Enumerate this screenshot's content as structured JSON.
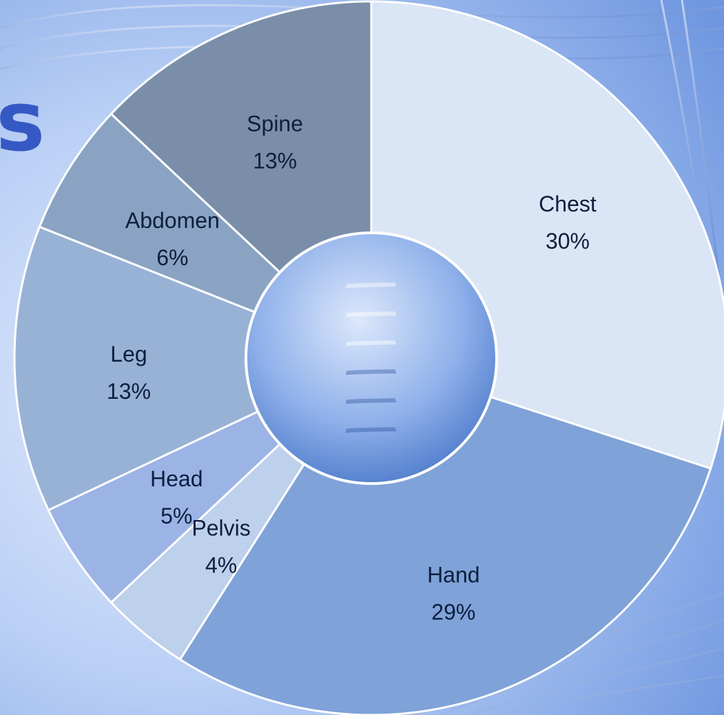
{
  "title_fragment": "s",
  "chart_data": {
    "type": "pie",
    "donut": true,
    "slices": [
      {
        "name": "Chest",
        "label": "30%",
        "value": 30,
        "color": "#dae5f5"
      },
      {
        "name": "Hand",
        "label": "29%",
        "value": 29,
        "color": "#7fa2d8"
      },
      {
        "name": "Pelvis",
        "label": "4%",
        "value": 4,
        "color": "#bdd0ec"
      },
      {
        "name": "Head",
        "label": "5%",
        "value": 5,
        "color": "#9cb3e6"
      },
      {
        "name": "Leg",
        "label": "13%",
        "value": 13,
        "color": "#98b2d6"
      },
      {
        "name": "Abdomen",
        "label": "6%",
        "value": 6,
        "color": "#8aa3c3"
      },
      {
        "name": "Spine",
        "label": "13%",
        "value": 13,
        "color": "#7a8ea9"
      }
    ],
    "title": "",
    "legend": "none",
    "start_angle_deg": 0,
    "direction": "clockwise"
  }
}
